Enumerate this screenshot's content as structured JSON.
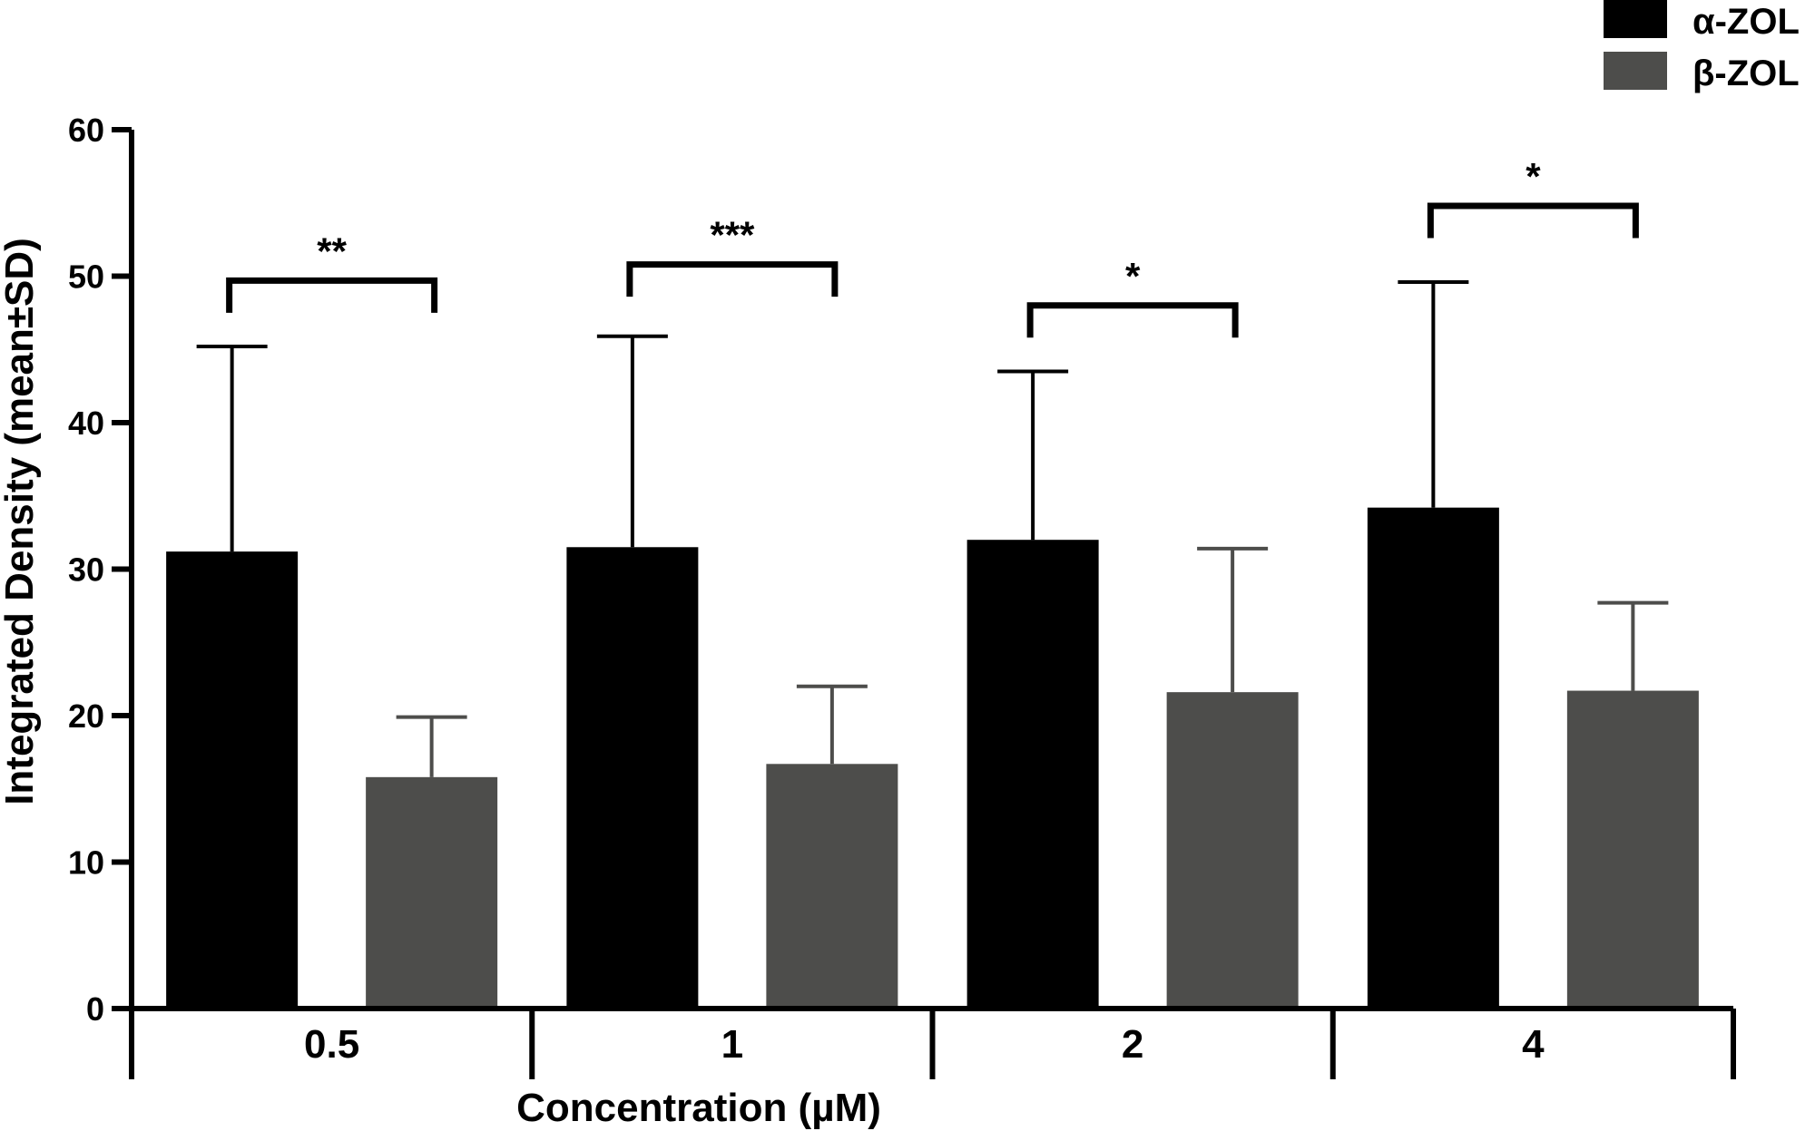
{
  "chart_data": {
    "type": "bar",
    "title": "",
    "xlabel": "Concentration (µM)",
    "ylabel": "Integrated Density (mean±SD)",
    "ylim": [
      0,
      60
    ],
    "yticks": [
      0,
      10,
      20,
      30,
      40,
      50,
      60
    ],
    "grid": false,
    "legend_position": "top-right",
    "categories": [
      "0.5",
      "1",
      "2",
      "4"
    ],
    "series": [
      {
        "name": "α-ZOL",
        "color": "#000000",
        "values": [
          31.2,
          31.5,
          32.0,
          34.2
        ],
        "sd": [
          14.0,
          14.4,
          11.5,
          15.4
        ]
      },
      {
        "name": "β-ZOL",
        "color": "#4d4d4b",
        "values": [
          15.8,
          16.7,
          21.6,
          21.7
        ],
        "sd": [
          4.1,
          5.3,
          9.8,
          6.0
        ]
      }
    ],
    "significance": [
      {
        "category": "0.5",
        "label": "**",
        "y": 49.7
      },
      {
        "category": "1",
        "label": "***",
        "y": 50.8
      },
      {
        "category": "2",
        "label": "*",
        "y": 48.0
      },
      {
        "category": "4",
        "label": "*",
        "y": 54.8
      }
    ]
  }
}
